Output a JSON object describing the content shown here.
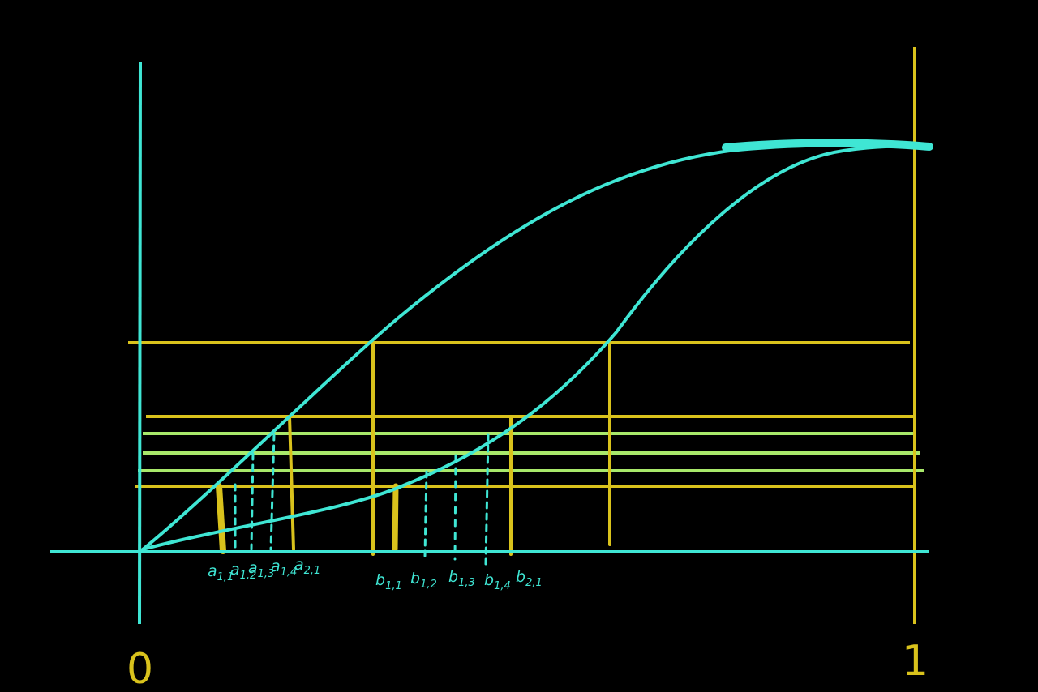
{
  "colors": {
    "background": "#000000",
    "cyan": "#3fe6d4",
    "yellow": "#d9c21c",
    "light_green": "#a8e86a"
  },
  "axis_labels": {
    "zero": "0",
    "one": "1"
  },
  "a_labels": [
    {
      "base": "a",
      "sub": "1,1"
    },
    {
      "base": "a",
      "sub": "1,2"
    },
    {
      "base": "a",
      "sub": "1,3"
    },
    {
      "base": "a",
      "sub": "1,4"
    },
    {
      "base": "a",
      "sub": "2,1"
    }
  ],
  "b_labels": [
    {
      "base": "b",
      "sub": "1,1"
    },
    {
      "base": "b",
      "sub": "1,2"
    },
    {
      "base": "b",
      "sub": "1,3"
    },
    {
      "base": "b",
      "sub": "1,4"
    },
    {
      "base": "b",
      "sub": "2,1"
    }
  ]
}
